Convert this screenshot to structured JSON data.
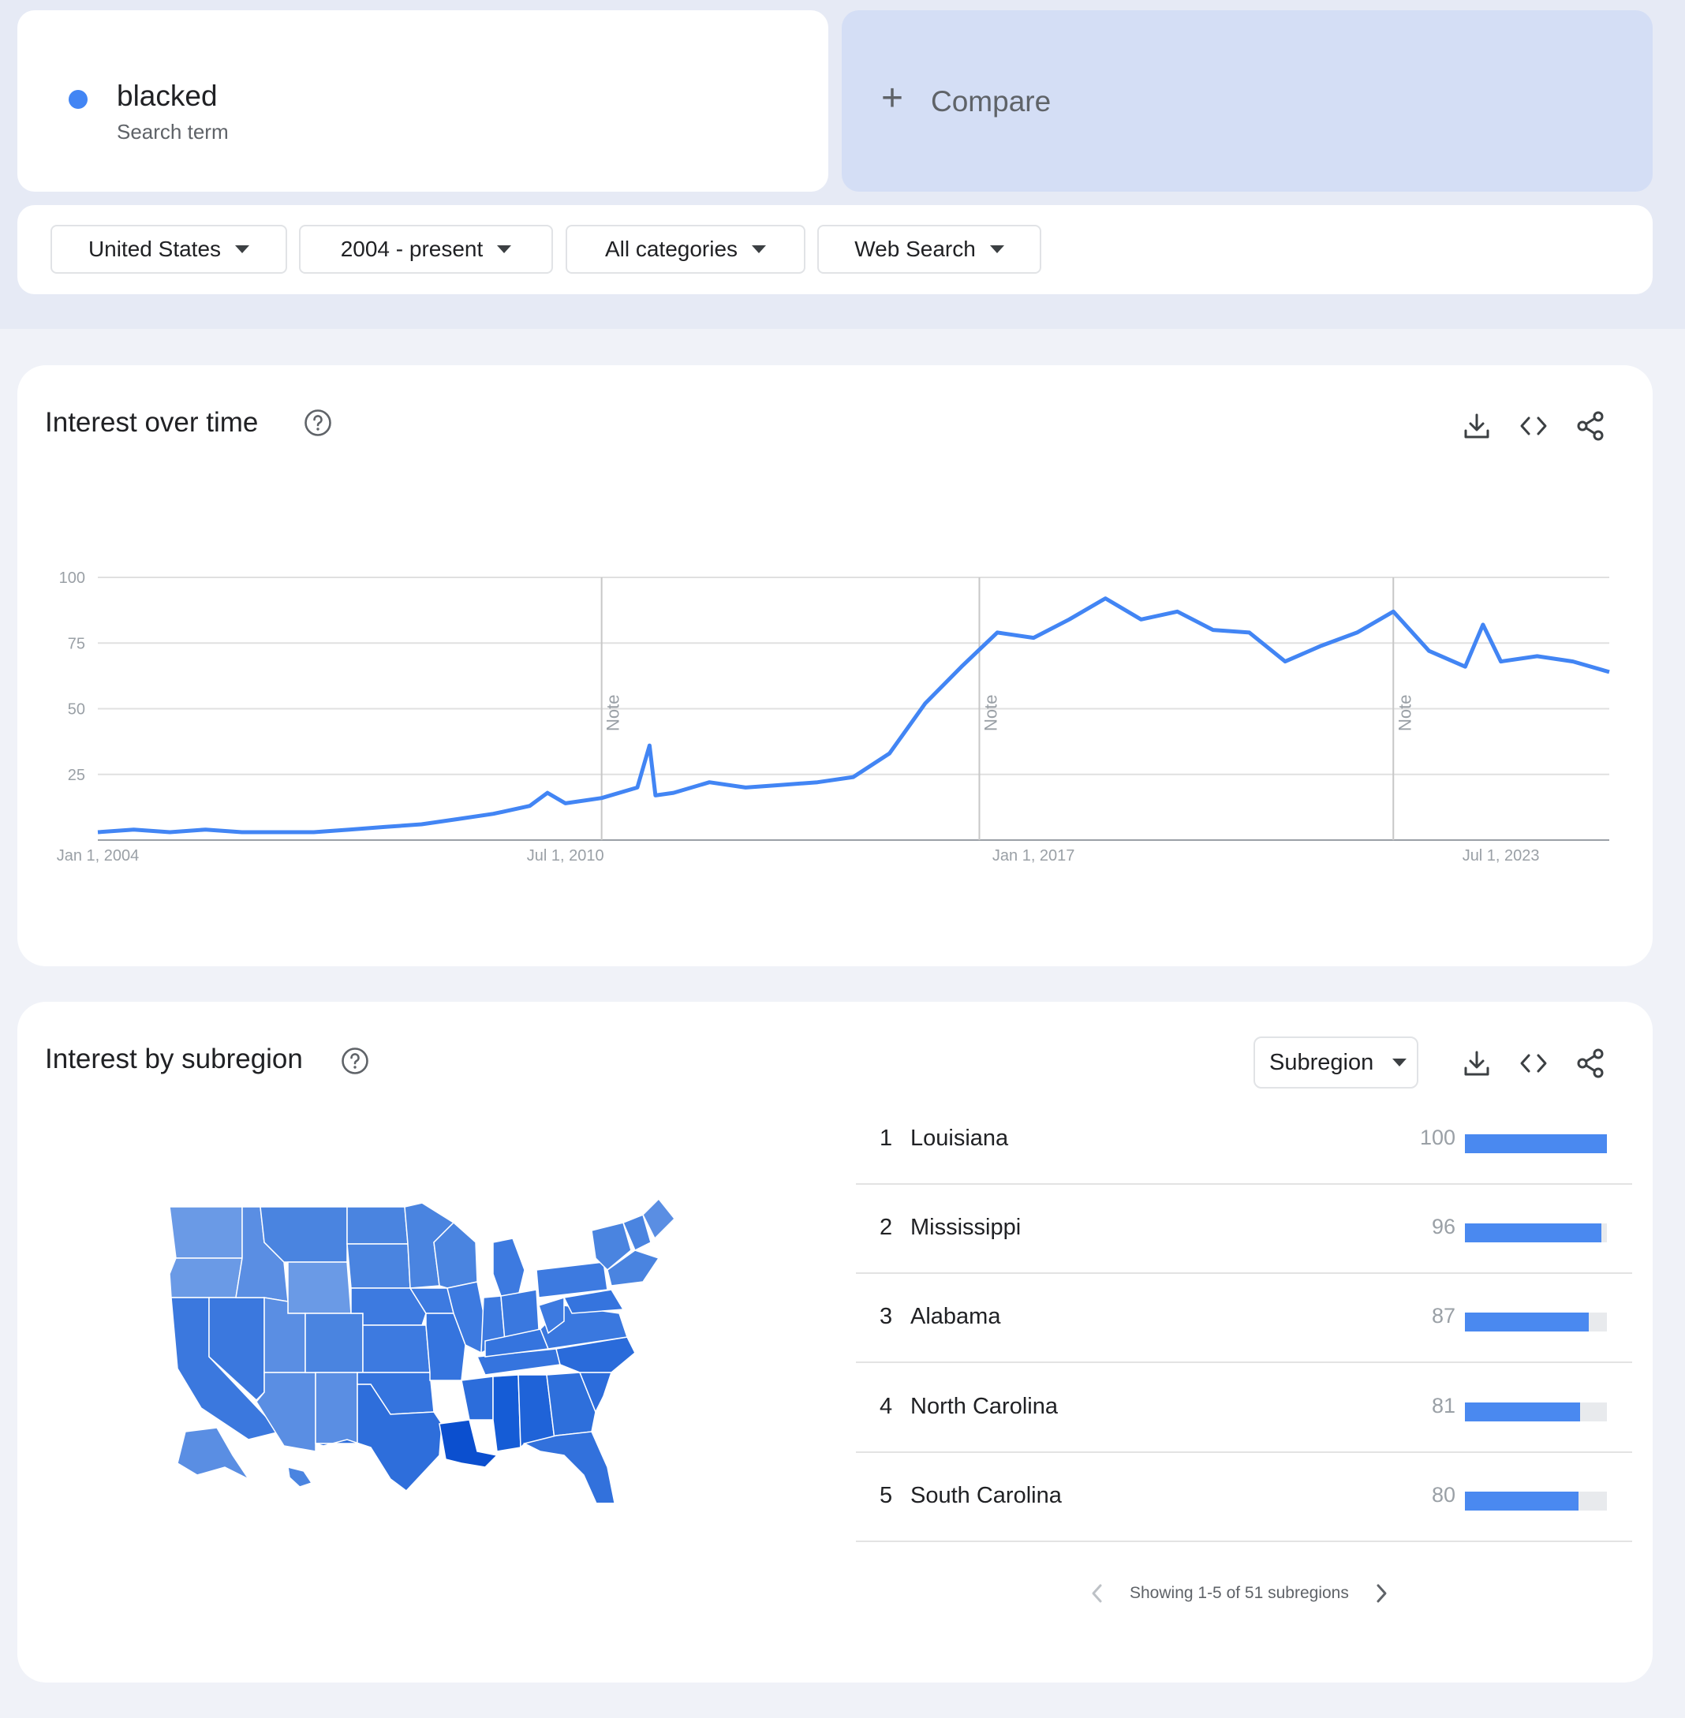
{
  "term": {
    "name": "blacked",
    "type_label": "Search term",
    "color": "#4285f4"
  },
  "compare": {
    "label": "Compare"
  },
  "filters": [
    {
      "label": "United States"
    },
    {
      "label": "2004 - present"
    },
    {
      "label": "All categories"
    },
    {
      "label": "Web Search"
    }
  ],
  "interest_over_time": {
    "title": "Interest over time",
    "note_label": "Note"
  },
  "interest_by_subregion": {
    "title": "Interest by subregion",
    "select_label": "Subregion",
    "rows": [
      {
        "rank": "1",
        "name": "Louisiana",
        "value": 100
      },
      {
        "rank": "2",
        "name": "Mississippi",
        "value": 96
      },
      {
        "rank": "3",
        "name": "Alabama",
        "value": 87
      },
      {
        "rank": "4",
        "name": "North Carolina",
        "value": 81
      },
      {
        "rank": "5",
        "name": "South Carolina",
        "value": 80
      }
    ],
    "pager_text": "Showing 1-5 of 51 subregions"
  },
  "chart_data": {
    "type": "line",
    "series": [
      {
        "color": "#4285f4",
        "x": [
          "2004-01",
          "2004-07",
          "2005-01",
          "2005-07",
          "2006-01",
          "2006-07",
          "2007-01",
          "2007-07",
          "2008-01",
          "2008-07",
          "2009-01",
          "2009-07",
          "2010-01",
          "2010-04",
          "2010-07",
          "2011-01",
          "2011-07",
          "2011-09",
          "2011-10",
          "2012-01",
          "2012-07",
          "2013-01",
          "2013-07",
          "2014-01",
          "2014-07",
          "2015-01",
          "2015-07",
          "2016-01",
          "2016-07",
          "2017-01",
          "2017-07",
          "2018-01",
          "2018-07",
          "2019-01",
          "2019-07",
          "2020-01",
          "2020-07",
          "2021-01",
          "2021-07",
          "2022-01",
          "2022-07",
          "2023-01",
          "2023-04",
          "2023-07",
          "2024-01",
          "2024-07",
          "2025-01"
        ],
        "y": [
          3,
          4,
          3,
          4,
          3,
          3,
          3,
          4,
          5,
          6,
          8,
          10,
          13,
          18,
          14,
          16,
          20,
          36,
          17,
          18,
          22,
          20,
          21,
          22,
          24,
          33,
          52,
          66,
          79,
          77,
          84,
          92,
          84,
          87,
          80,
          79,
          68,
          74,
          79,
          87,
          72,
          66,
          82,
          68,
          70,
          68,
          64
        ]
      }
    ],
    "x_ticks": [
      "Jan 1, 2004",
      "Jul 1, 2010",
      "Jan 1, 2017",
      "Jul 1, 2023"
    ],
    "y_ticks": [
      25,
      50,
      75,
      100
    ],
    "ylim": [
      0,
      100
    ],
    "notes_at": [
      "2011-01",
      "2016-04",
      "2022-01"
    ],
    "grid": true
  }
}
